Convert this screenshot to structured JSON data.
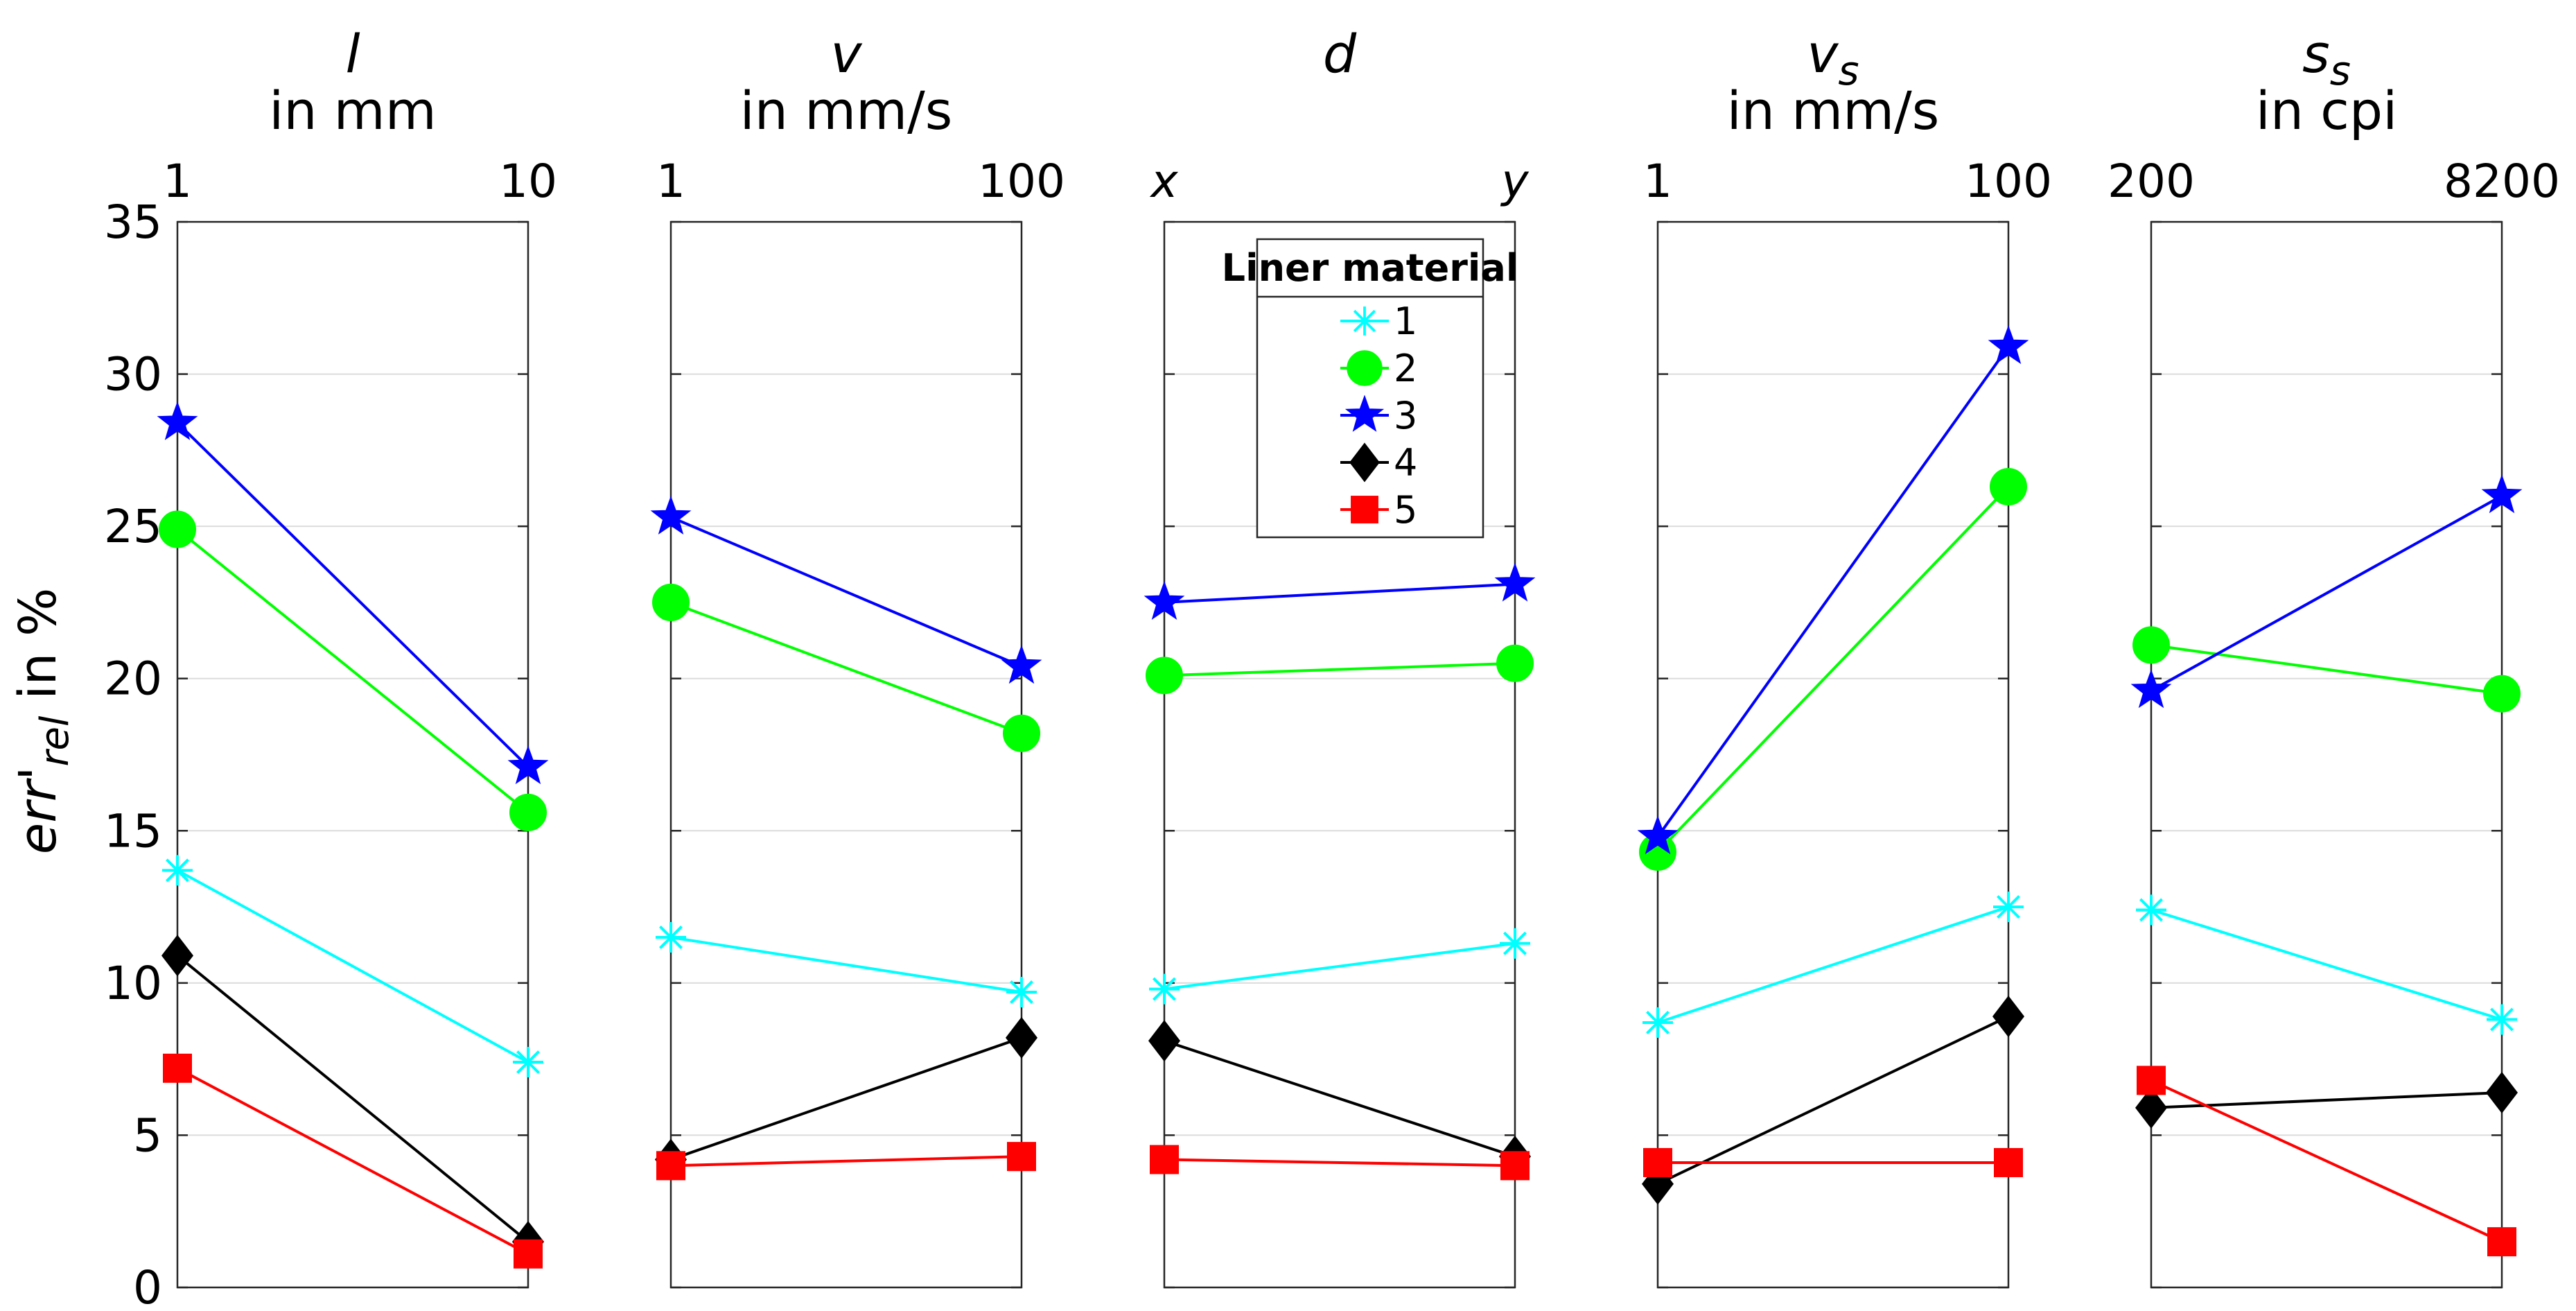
{
  "chart_data": {
    "type": "line",
    "ylabel": {
      "main": "err'",
      "sub": "rel",
      "suffix": " in %"
    },
    "ylim": [
      0,
      35
    ],
    "yticks": [
      "0",
      "5",
      "10",
      "15",
      "20",
      "25",
      "30",
      "35"
    ],
    "grid": true,
    "panels": [
      {
        "id": "l",
        "var": "l",
        "sub": "",
        "unit": "in mm",
        "ticks": [
          "1",
          "10"
        ],
        "tick_italic": false,
        "series": [
          [
            13.7,
            7.4
          ],
          [
            24.9,
            15.6
          ],
          [
            28.4,
            17.1
          ],
          [
            10.9,
            1.5
          ],
          [
            7.2,
            1.1
          ]
        ]
      },
      {
        "id": "v",
        "var": "v",
        "sub": "",
        "unit": "in mm/s",
        "ticks": [
          "1",
          "100"
        ],
        "tick_italic": false,
        "series": [
          [
            11.5,
            9.7
          ],
          [
            22.5,
            18.2
          ],
          [
            25.3,
            20.4
          ],
          [
            4.2,
            8.2
          ],
          [
            4.0,
            4.3
          ]
        ]
      },
      {
        "id": "d",
        "var": "d",
        "sub": "",
        "unit": "",
        "ticks": [
          "x",
          "y"
        ],
        "tick_italic": true,
        "series": [
          [
            9.8,
            11.3
          ],
          [
            20.1,
            20.5
          ],
          [
            22.5,
            23.1
          ],
          [
            8.1,
            4.3
          ],
          [
            4.2,
            4.0
          ]
        ]
      },
      {
        "id": "vs",
        "var": "v",
        "sub": "s",
        "unit": "in mm/s",
        "ticks": [
          "1",
          "100"
        ],
        "tick_italic": false,
        "series": [
          [
            8.7,
            12.5
          ],
          [
            14.3,
            26.3
          ],
          [
            14.8,
            30.9
          ],
          [
            3.4,
            8.9
          ],
          [
            4.1,
            4.1
          ]
        ]
      },
      {
        "id": "ss",
        "var": "s",
        "sub": "s",
        "unit": "in cpi",
        "ticks": [
          "200",
          "8200"
        ],
        "tick_italic": false,
        "series": [
          [
            12.4,
            8.8
          ],
          [
            21.1,
            19.5
          ],
          [
            19.6,
            26.0
          ],
          [
            5.9,
            6.4
          ],
          [
            6.8,
            1.5
          ]
        ]
      }
    ],
    "legend": {
      "title": "Liner material",
      "placement": "inside third panel, top",
      "entries": [
        {
          "name": "1",
          "color": "#00ffff",
          "marker": "asterisk"
        },
        {
          "name": "2",
          "color": "#00ff00",
          "marker": "circle"
        },
        {
          "name": "3",
          "color": "#0000ff",
          "marker": "star"
        },
        {
          "name": "4",
          "color": "#000000",
          "marker": "diamond"
        },
        {
          "name": "5",
          "color": "#ff0000",
          "marker": "square"
        }
      ]
    }
  }
}
